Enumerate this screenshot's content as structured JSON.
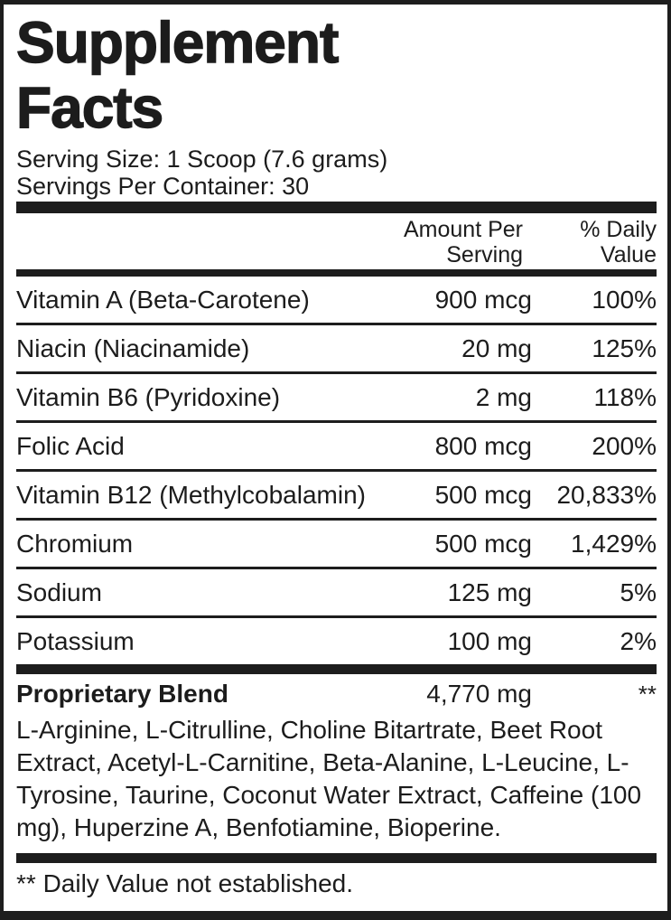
{
  "colors": {
    "text": "#1c1c1c",
    "rule": "#1d1d1d",
    "background": "#ffffff"
  },
  "header": {
    "title_line1": "Supplement",
    "title_line2": "Facts",
    "serving_size": "Serving Size: 1 Scoop (7.6 grams)",
    "servings_per_container": "Servings Per Container: 30"
  },
  "table": {
    "col_amount_header": "Amount Per Serving",
    "col_dv_header": "% Daily Value",
    "nutrients": [
      {
        "name": "Vitamin A (Beta-Carotene)",
        "amount": "900 mcg",
        "dv": "100%"
      },
      {
        "name": "Niacin (Niacinamide)",
        "amount": "20 mg",
        "dv": "125%"
      },
      {
        "name": "Vitamin B6 (Pyridoxine)",
        "amount": "2 mg",
        "dv": "118%"
      },
      {
        "name": "Folic Acid",
        "amount": "800 mcg",
        "dv": "200%"
      },
      {
        "name": "Vitamin B12 (Methylcobalamin)",
        "amount": "500 mcg",
        "dv": "20,833%"
      },
      {
        "name": "Chromium",
        "amount": "500 mcg",
        "dv": "1,429%"
      },
      {
        "name": "Sodium",
        "amount": "125 mg",
        "dv": "5%"
      },
      {
        "name": "Potassium",
        "amount": "100 mg",
        "dv": "2%"
      }
    ]
  },
  "blend": {
    "name": "Proprietary Blend",
    "amount": "4,770 mg",
    "dv": "**",
    "ingredients": "L-Arginine, L-Citrulline, Choline Bitartrate, Beet Root Extract, Acetyl-L-Carnitine, Beta-Alanine, L-Leucine, L-Tyrosine, Taurine, Coconut Water Extract,  Caffeine (100 mg), Huperzine A, Benfotiamine, Bioperine."
  },
  "footnote": "** Daily Value not established."
}
